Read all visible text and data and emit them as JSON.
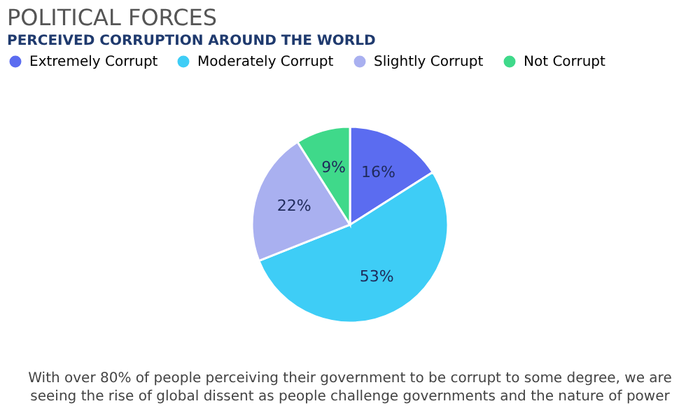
{
  "chart_data": {
    "type": "pie",
    "title": "POLITICAL FORCES",
    "subtitle": "PERCEIVED CORRUPTION AROUND THE WORLD",
    "categories": [
      "Extremely Corrupt",
      "Moderately Corrupt",
      "Slightly Corrupt",
      "Not Corrupt"
    ],
    "values": [
      16,
      53,
      22,
      9
    ],
    "value_labels": [
      "16%",
      "53%",
      "22%",
      "9%"
    ],
    "colors": [
      "#5b6cf0",
      "#3ecdf6",
      "#a9b0f0",
      "#3fd98a"
    ],
    "legend": "top",
    "annotations": [
      "With over 80% of people perceiving their government to be corrupt to some degree, we are seeing the rise of global dissent as people challenge governments and the nature of power"
    ]
  }
}
